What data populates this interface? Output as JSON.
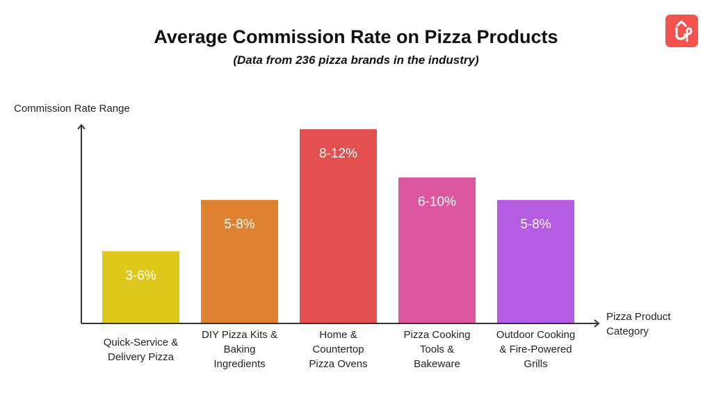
{
  "header": {
    "title": "Average Commission Rate on Pizza Products",
    "subtitle": "(Data from 236 pizza brands in the industry)",
    "logo_icon": "up-arrow-brand-logo-icon"
  },
  "colors": {
    "background": "#ffffff",
    "axis": "#333333",
    "text": "#222222",
    "logo": "#f4524d",
    "bar_label": "#ffffff"
  },
  "chart_data": {
    "type": "bar",
    "title": "Average Commission Rate on Pizza Products",
    "subtitle": "(Data from 236 pizza brands in the industry)",
    "ylabel": "Commission Rate Range",
    "xlabel": [
      "Pizza Product",
      "Category"
    ],
    "ylim": [
      0,
      13
    ],
    "grid": false,
    "categories": [
      [
        "Quick-Service &",
        "Delivery Pizza"
      ],
      [
        "DIY Pizza Kits &",
        "Baking",
        "Ingredients"
      ],
      [
        "Home &",
        "Countertop",
        "Pizza Ovens"
      ],
      [
        "Pizza Cooking",
        "Tools &",
        "Bakeware"
      ],
      [
        "Outdoor Cooking",
        "& Fire-Powered",
        "Grills"
      ]
    ],
    "ranges": [
      [
        3,
        6
      ],
      [
        5,
        8
      ],
      [
        8,
        12
      ],
      [
        6,
        10
      ],
      [
        5,
        8
      ]
    ],
    "values": [
      4.8,
      8.2,
      12.9,
      9.7,
      8.2
    ],
    "data_labels": [
      "3-6%",
      "5-8%",
      "8-12%",
      "6-10%",
      "5-8%"
    ],
    "bar_colors": [
      "#dfc81c",
      "#de8231",
      "#e2514f",
      "#dc579f",
      "#b55ce3"
    ]
  }
}
